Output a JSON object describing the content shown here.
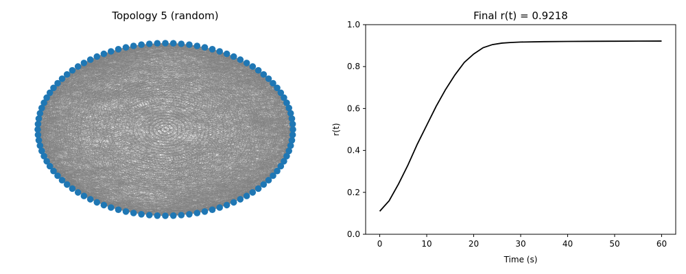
{
  "chart_data": [
    {
      "type": "network",
      "title": "Topology 5 (random)",
      "layout": "circular",
      "node_count": 100,
      "node_color": "#1f77b4",
      "edge_color": "#808080",
      "edge_density": "dense",
      "axes_visible": false
    },
    {
      "type": "line",
      "title": "Final r(t) = 0.9218",
      "xlabel": "Time (s)",
      "ylabel": "r(t)",
      "xlim": [
        -3,
        63
      ],
      "ylim": [
        0,
        1
      ],
      "xticks": [
        0,
        10,
        20,
        30,
        40,
        50,
        60
      ],
      "yticks": [
        0.0,
        0.2,
        0.4,
        0.6,
        0.8,
        1.0
      ],
      "xtick_labels": [
        "0",
        "10",
        "20",
        "30",
        "40",
        "50",
        "60"
      ],
      "ytick_labels": [
        "0.0",
        "0.2",
        "0.4",
        "0.6",
        "0.8",
        "1.0"
      ],
      "line_color": "#000000",
      "grid": false,
      "series": [
        {
          "x": [
            0,
            2,
            4,
            6,
            8,
            10,
            12,
            14,
            16,
            18,
            20,
            22,
            24,
            26,
            28,
            30,
            35,
            40,
            45,
            50,
            55,
            60
          ],
          "y": [
            0.11,
            0.16,
            0.24,
            0.33,
            0.43,
            0.52,
            0.61,
            0.69,
            0.76,
            0.82,
            0.86,
            0.89,
            0.905,
            0.912,
            0.915,
            0.917,
            0.919,
            0.92,
            0.9205,
            0.921,
            0.9215,
            0.9218
          ]
        }
      ]
    }
  ]
}
